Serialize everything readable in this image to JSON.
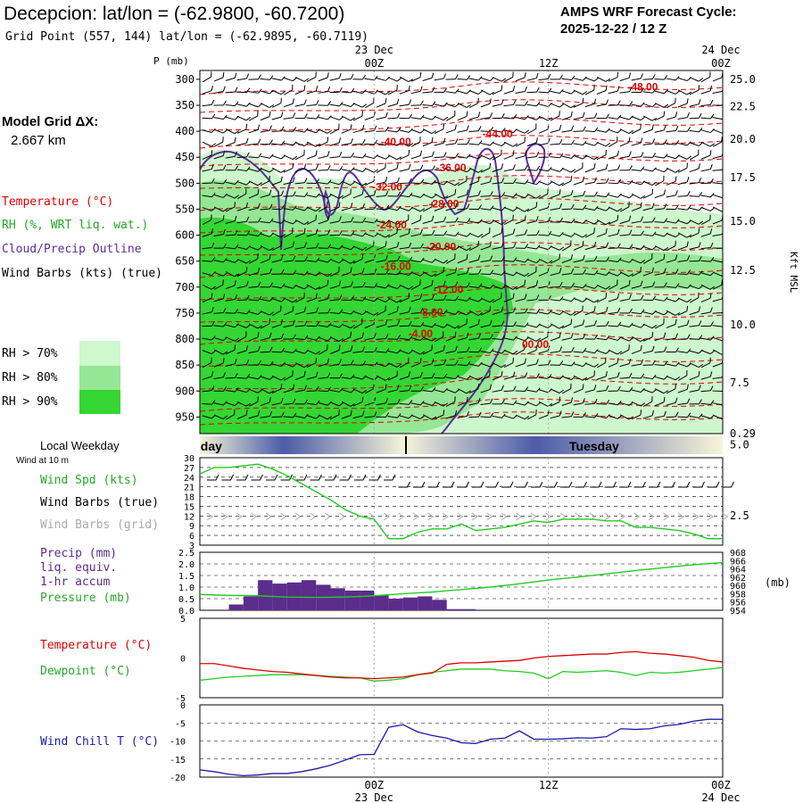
{
  "header": {
    "station_line": "Decepcion:  lat/lon = (-62.9800, -60.7200)",
    "grid_line": "Grid Point (557, 144) lat/lon = (-62.9895, -60.7119)",
    "cycle_title": "AMPS WRF Forecast Cycle:",
    "cycle_value": "2025-12-22 / 12  Z"
  },
  "time_axis": {
    "top_dates": [
      "23 Dec",
      "",
      "24 Dec"
    ],
    "top_hours": [
      "00Z",
      "12Z",
      "00Z"
    ],
    "bottom_hours": [
      "00Z",
      "12Z",
      "00Z"
    ],
    "bottom_dates": [
      "23 Dec",
      "",
      "24 Dec"
    ],
    "hours": [
      -12,
      0,
      12,
      24
    ]
  },
  "left_labels": {
    "grid_title": "Model Grid ΔX:",
    "grid_value": "2.667 km",
    "temperature": "Temperature (°C)",
    "rh": "RH (%, WRT liq. wat.)",
    "cloud": "Cloud/Precip Outline",
    "barbs": "Wind Barbs (kts) (true)",
    "rh_legend": [
      {
        "label": "RH > 70%",
        "color": "#cdf7cd"
      },
      {
        "label": "RH > 80%",
        "color": "#95e695"
      },
      {
        "label": "RH > 90%",
        "color": "#33d633"
      }
    ],
    "local_weekday": "Local Weekday",
    "wind_at": "Wind at 10 m",
    "wind_spd": "Wind Spd (kts)",
    "wind_barbs_true": "Wind Barbs (true)",
    "wind_barbs_grid": "Wind Barbs (grid)",
    "precip": "Precip (mm)",
    "liq": "liq. equiv.",
    "accum": "1-hr accum",
    "pressure": "Pressure (mb)",
    "temp2": "Temperature (°C)",
    "dewpoint": "Dewpoint (°C)",
    "windchill": "Wind Chill T (°C)"
  },
  "colors": {
    "temperature": "#e00000",
    "rh70": "#cdf7cd",
    "rh80": "#95e695",
    "rh90": "#33d633",
    "cloud": "#5a2d9c",
    "wind_speed": "#22cc22",
    "barb_grid": "#aaaaaa",
    "precip": "#5b2c8c",
    "pressure": "#22cc22",
    "dewpoint": "#22cc22",
    "windchill": "#1a1aaa",
    "weekday_dark": "#4f5ea8",
    "weekday_light": "#f5f3d8"
  },
  "weekday": {
    "left": "Monday",
    "right": "Tuesday"
  },
  "chart_data": [
    {
      "type": "contour",
      "name": "sounding-cross-section",
      "ylabel": "P (mb)",
      "y2label": "Kft MSL",
      "pressure_ticks": [
        300,
        350,
        400,
        450,
        500,
        550,
        600,
        650,
        700,
        750,
        800,
        850,
        900,
        950
      ],
      "kft_ticks": [
        {
          "p": 325,
          "label": "25.0"
        },
        {
          "p": 350,
          "label": "22.5"
        },
        {
          "p": 380,
          "label": "20.0"
        },
        {
          "p": 415,
          "label": "17.5"
        },
        {
          "p": 455,
          "label": "15.0"
        },
        {
          "p": 500,
          "label": "12.5"
        },
        {
          "p": 550,
          "label": "10.0"
        },
        {
          "p": 603,
          "label": "7.5"
        },
        {
          "p": 660,
          "label": "5.0"
        },
        {
          "p": 725,
          "label": "2.5"
        },
        {
          "p": 790,
          "label": "0.29"
        }
      ],
      "temperature_labels": [
        {
          "label": "-48.00",
          "hour": 18.5,
          "p": 315
        },
        {
          "label": "-44.00",
          "hour": 8.5,
          "p": 405
        },
        {
          "label": "-40.00",
          "hour": 1.5,
          "p": 420
        },
        {
          "label": "-36.00",
          "hour": 5.3,
          "p": 470
        },
        {
          "label": "-32.00",
          "hour": 0.9,
          "p": 507
        },
        {
          "label": "-28.00",
          "hour": 4.8,
          "p": 540
        },
        {
          "label": "-24.00",
          "hour": 1.2,
          "p": 580
        },
        {
          "label": "-20.00",
          "hour": 4.6,
          "p": 622
        },
        {
          "label": "-16.00",
          "hour": 1.5,
          "p": 660
        },
        {
          "label": "-12.00",
          "hour": 5.1,
          "p": 705
        },
        {
          "label": "-8.00",
          "hour": 3.9,
          "p": 748
        },
        {
          "label": "-4.00",
          "hour": 3.2,
          "p": 790
        },
        {
          "label": "00.00",
          "hour": 11.1,
          "p": 810
        }
      ]
    },
    {
      "type": "line",
      "name": "surface-wind-speed",
      "ylabel": "Wind Spd (kts)",
      "ylim": [
        3,
        30
      ],
      "yticks": [
        3,
        6,
        9,
        12,
        15,
        18,
        21,
        24,
        27,
        30
      ],
      "x": [
        -12,
        -11,
        -10,
        -9,
        -8,
        -7,
        -6,
        -5,
        -4,
        -3,
        -2,
        -1,
        0,
        1,
        2,
        3,
        4,
        5,
        6,
        7,
        8,
        9,
        10,
        11,
        12,
        13,
        14,
        15,
        16,
        17,
        18,
        19,
        20,
        21,
        22,
        23,
        24
      ],
      "values": [
        25,
        27,
        27,
        27.5,
        28,
        26.5,
        24.5,
        22,
        19.5,
        17,
        14,
        12,
        11,
        5,
        5,
        7,
        8,
        8,
        9.5,
        7.5,
        8,
        8.5,
        9.5,
        10.5,
        10,
        11,
        11,
        11,
        10.5,
        10.5,
        8.5,
        8.5,
        8,
        7.5,
        6.5,
        5,
        5
      ]
    },
    {
      "type": "bar+line",
      "name": "precip-pressure",
      "ylim": [
        0,
        2.5
      ],
      "yticks": [
        0,
        0.5,
        1.0,
        1.5,
        2.0,
        2.5
      ],
      "ylabel2": "(mb)",
      "y2lim": [
        954,
        968
      ],
      "y2ticks": [
        954,
        956,
        958,
        960,
        962,
        964,
        966,
        968
      ],
      "precip_start_hours": [
        -10,
        -9,
        -8,
        -7,
        -6,
        -5,
        -4,
        -3,
        -2,
        -1,
        0,
        1,
        2,
        3,
        4,
        5,
        6
      ],
      "precip_mm": [
        0.25,
        0.6,
        1.3,
        1.15,
        1.2,
        1.3,
        1.1,
        0.95,
        0.85,
        0.85,
        0.65,
        0.5,
        0.55,
        0.6,
        0.45,
        0.05,
        0.05
      ],
      "pressure_hours": [
        -12,
        -10,
        -8,
        -6,
        -4,
        -2,
        0,
        2,
        4,
        6,
        8,
        10,
        12,
        14,
        16,
        18,
        20,
        22,
        24
      ],
      "pressure_mb": [
        957.8,
        957.6,
        957.5,
        957.2,
        957.1,
        957.2,
        957.5,
        958.0,
        958.4,
        959.0,
        959.6,
        960.4,
        961.3,
        962.0,
        962.8,
        963.6,
        964.3,
        965.0,
        965.5
      ]
    },
    {
      "type": "line",
      "name": "temperature-dewpoint",
      "ylim": [
        -5,
        5
      ],
      "yticks": [
        -5,
        0,
        5
      ],
      "x": [
        -12,
        -11,
        -10,
        -9,
        -8,
        -7,
        -6,
        -5,
        -4,
        -3,
        -2,
        -1,
        0,
        1,
        2,
        3,
        4,
        5,
        6,
        7,
        8,
        9,
        10,
        11,
        12,
        13,
        14,
        15,
        16,
        17,
        18,
        19,
        20,
        21,
        22,
        23,
        24
      ],
      "temperature": [
        -0.7,
        -0.7,
        -1.0,
        -1.3,
        -1.5,
        -1.7,
        -1.8,
        -2.0,
        -2.2,
        -2.4,
        -2.5,
        -2.5,
        -2.6,
        -2.5,
        -2.4,
        -2.1,
        -1.9,
        -0.8,
        -0.6,
        -0.6,
        -0.5,
        -0.4,
        -0.3,
        0.0,
        0.2,
        0.3,
        0.4,
        0.5,
        0.5,
        0.7,
        0.8,
        0.6,
        0.5,
        0.3,
        0.1,
        -0.3,
        -0.5
      ],
      "dewpoint": [
        -2.8,
        -2.6,
        -2.4,
        -2.3,
        -2.2,
        -2.1,
        -2.1,
        -2.1,
        -2.2,
        -2.3,
        -2.4,
        -2.5,
        -2.9,
        -2.8,
        -2.6,
        -2.1,
        -1.8,
        -1.6,
        -1.4,
        -1.4,
        -1.4,
        -1.6,
        -1.7,
        -1.9,
        -2.6,
        -1.7,
        -1.8,
        -1.7,
        -1.6,
        -1.8,
        -2.2,
        -1.8,
        -1.9,
        -1.8,
        -1.6,
        -1.4,
        -1.2
      ]
    },
    {
      "type": "line",
      "name": "wind-chill",
      "ylabel": "Wind Chill T (°C)",
      "ylim": [
        -20,
        0
      ],
      "yticks": [
        0,
        -5,
        -10,
        -15,
        -20
      ],
      "x": [
        -12,
        -11,
        -10,
        -9,
        -8,
        -7,
        -6,
        -5,
        -4,
        -3,
        -2,
        -1,
        0,
        1,
        2,
        3,
        4,
        5,
        6,
        7,
        8,
        9,
        10,
        11,
        12,
        13,
        14,
        15,
        16,
        17,
        18,
        19,
        20,
        21,
        22,
        23,
        24
      ],
      "values": [
        -18,
        -18.5,
        -19.2,
        -19.6,
        -19.4,
        -19.0,
        -19.0,
        -18.5,
        -17.7,
        -16.7,
        -15.3,
        -13.8,
        -13.7,
        -6.2,
        -5.5,
        -7.5,
        -8.5,
        -9.2,
        -10.5,
        -10.7,
        -9.5,
        -9.2,
        -7.2,
        -9.5,
        -9.5,
        -9.4,
        -9.1,
        -9.2,
        -8.8,
        -6.6,
        -6.8,
        -6.6,
        -5.8,
        -5.4,
        -4.5,
        -4.0,
        -4.0
      ]
    }
  ]
}
